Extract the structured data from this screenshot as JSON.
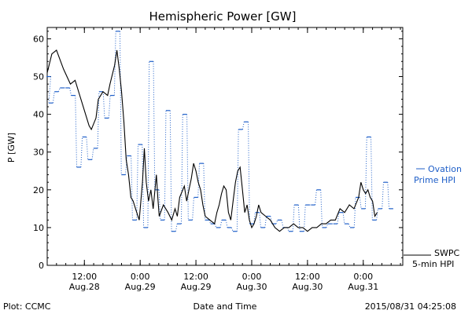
{
  "chart_data": {
    "type": "line",
    "title": "Hemispheric Power [GW]",
    "ylabel": "P [GW]",
    "xlabel": "Date and Time",
    "ylim": [
      0,
      63
    ],
    "xlim": [
      4,
      80.5
    ],
    "yticks": [
      0,
      10,
      20,
      30,
      40,
      50,
      60
    ],
    "x_units": "hours since 2015/08/27 00:00",
    "xticks": [
      {
        "x": 12,
        "time": "12:00",
        "date": "Aug.28"
      },
      {
        "x": 24,
        "time": "0:00",
        "date": "Aug.29"
      },
      {
        "x": 36,
        "time": "12:00",
        "date": "Aug.29"
      },
      {
        "x": 48,
        "time": "0:00",
        "date": "Aug.30"
      },
      {
        "x": 60,
        "time": "12:00",
        "date": "Aug.30"
      },
      {
        "x": 72,
        "time": "0:00",
        "date": "Aug.31"
      }
    ],
    "series": [
      {
        "name": "SWPC 5-min HPI",
        "legend_lines": [
          "SWPC",
          "5-min HPI"
        ],
        "color": "#000000",
        "style": "solid",
        "points": [
          [
            4.0,
            51
          ],
          [
            5.0,
            56
          ],
          [
            6.0,
            57
          ],
          [
            7.5,
            52
          ],
          [
            9.0,
            48
          ],
          [
            10.0,
            49
          ],
          [
            11.0,
            45
          ],
          [
            12.0,
            41
          ],
          [
            13.0,
            37
          ],
          [
            13.5,
            36
          ],
          [
            14.5,
            39
          ],
          [
            15.0,
            44
          ],
          [
            16.0,
            46
          ],
          [
            17.0,
            45
          ],
          [
            17.5,
            48
          ],
          [
            18.5,
            53
          ],
          [
            19.0,
            57
          ],
          [
            19.5,
            52
          ],
          [
            20.0,
            46
          ],
          [
            20.5,
            38
          ],
          [
            21.0,
            28
          ],
          [
            21.5,
            24
          ],
          [
            22.0,
            18
          ],
          [
            22.5,
            17
          ],
          [
            23.0,
            15
          ],
          [
            23.8,
            12
          ],
          [
            24.5,
            22
          ],
          [
            24.9,
            31
          ],
          [
            25.3,
            22
          ],
          [
            25.8,
            17
          ],
          [
            26.3,
            20
          ],
          [
            26.8,
            15
          ],
          [
            27.5,
            24
          ],
          [
            27.8,
            18
          ],
          [
            28.1,
            13
          ],
          [
            29.0,
            16
          ],
          [
            30.0,
            14
          ],
          [
            30.8,
            12
          ],
          [
            31.5,
            15
          ],
          [
            32.0,
            13
          ],
          [
            32.5,
            18
          ],
          [
            33.5,
            21
          ],
          [
            34.0,
            17
          ],
          [
            34.5,
            20
          ],
          [
            35.0,
            23
          ],
          [
            35.5,
            27
          ],
          [
            36.0,
            25
          ],
          [
            36.5,
            22
          ],
          [
            37.0,
            20
          ],
          [
            37.5,
            16
          ],
          [
            38.0,
            13
          ],
          [
            39.0,
            12
          ],
          [
            40.0,
            11
          ],
          [
            40.5,
            14
          ],
          [
            41.0,
            16
          ],
          [
            41.5,
            19
          ],
          [
            42.0,
            21
          ],
          [
            42.5,
            20
          ],
          [
            43.0,
            14
          ],
          [
            43.5,
            12
          ],
          [
            44.0,
            17
          ],
          [
            44.5,
            22
          ],
          [
            45.0,
            25
          ],
          [
            45.5,
            26
          ],
          [
            46.0,
            20
          ],
          [
            46.5,
            14
          ],
          [
            47.0,
            16
          ],
          [
            47.5,
            12
          ],
          [
            48.0,
            10
          ],
          [
            48.5,
            11
          ],
          [
            49.0,
            13
          ],
          [
            49.5,
            16
          ],
          [
            50.0,
            14
          ],
          [
            51.0,
            13
          ],
          [
            52.0,
            12
          ],
          [
            53.0,
            10
          ],
          [
            54.0,
            9
          ],
          [
            55.0,
            10
          ],
          [
            56.0,
            10
          ],
          [
            57.0,
            11
          ],
          [
            58.0,
            10
          ],
          [
            59.0,
            10
          ],
          [
            60.0,
            9
          ],
          [
            61.0,
            10
          ],
          [
            62.0,
            10
          ],
          [
            63.0,
            11
          ],
          [
            64.0,
            11
          ],
          [
            65.0,
            12
          ],
          [
            66.0,
            12
          ],
          [
            67.0,
            15
          ],
          [
            68.0,
            14
          ],
          [
            69.0,
            16
          ],
          [
            70.0,
            15
          ],
          [
            71.0,
            18
          ],
          [
            71.5,
            22
          ],
          [
            72.0,
            20
          ],
          [
            72.5,
            19
          ],
          [
            73.0,
            20
          ],
          [
            73.5,
            18
          ],
          [
            74.0,
            17
          ],
          [
            74.5,
            13
          ],
          [
            75.0,
            14
          ]
        ]
      },
      {
        "name": "Ovation Prime HPI",
        "legend_lines": [
          "Ovation",
          "Prime HPI"
        ],
        "color": "#1f5fc8",
        "style": "dotted-step",
        "segment_half_width_h": 0.45,
        "points": [
          [
            4.3,
            50
          ],
          [
            4.8,
            43
          ],
          [
            6.0,
            46
          ],
          [
            7.2,
            47
          ],
          [
            8.4,
            47
          ],
          [
            9.6,
            45
          ],
          [
            10.8,
            26
          ],
          [
            12.0,
            34
          ],
          [
            13.2,
            28
          ],
          [
            14.4,
            31
          ],
          [
            15.6,
            46
          ],
          [
            16.8,
            39
          ],
          [
            18.0,
            45
          ],
          [
            19.2,
            62
          ],
          [
            20.4,
            24
          ],
          [
            21.6,
            29
          ],
          [
            22.8,
            12
          ],
          [
            24.0,
            32
          ],
          [
            25.2,
            10
          ],
          [
            26.4,
            54
          ],
          [
            27.6,
            20
          ],
          [
            28.8,
            12
          ],
          [
            30.0,
            41
          ],
          [
            31.2,
            9
          ],
          [
            32.4,
            11
          ],
          [
            33.6,
            40
          ],
          [
            34.8,
            12
          ],
          [
            36.0,
            18
          ],
          [
            37.2,
            27
          ],
          [
            38.4,
            12
          ],
          [
            39.6,
            11
          ],
          [
            40.8,
            10
          ],
          [
            42.0,
            12
          ],
          [
            43.2,
            10
          ],
          [
            44.4,
            9
          ],
          [
            45.6,
            36
          ],
          [
            46.8,
            38
          ],
          [
            48.0,
            11
          ],
          [
            49.2,
            14
          ],
          [
            50.4,
            10
          ],
          [
            51.6,
            13
          ],
          [
            52.8,
            11
          ],
          [
            54.0,
            12
          ],
          [
            55.2,
            10
          ],
          [
            56.4,
            9
          ],
          [
            57.6,
            16
          ],
          [
            58.8,
            9
          ],
          [
            60.0,
            16
          ],
          [
            61.2,
            16
          ],
          [
            62.4,
            20
          ],
          [
            63.6,
            10
          ],
          [
            64.8,
            11
          ],
          [
            66.0,
            11
          ],
          [
            67.2,
            14
          ],
          [
            68.4,
            11
          ],
          [
            69.6,
            10
          ],
          [
            70.8,
            18
          ],
          [
            72.0,
            15
          ],
          [
            73.2,
            34
          ],
          [
            74.4,
            12
          ],
          [
            75.6,
            15
          ],
          [
            76.8,
            22
          ],
          [
            78.0,
            15
          ]
        ]
      }
    ]
  },
  "footer": {
    "credit": "Plot: CCMC",
    "timestamp": "2015/08/31 04:25:08"
  }
}
